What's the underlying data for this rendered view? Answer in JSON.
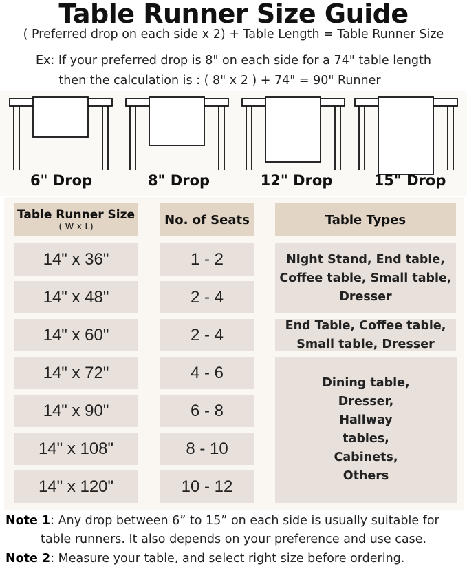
{
  "title": "Table Runner Size Guide",
  "formula": "( Preferred drop on each side x 2) + Table Length = Table Runner Size",
  "example_line1": "Ex: If your preferred drop is 8\" on each side for a 74\" table length",
  "example_line2": "then the calculation is : ( 8\" x 2 ) + 74\" = 90\" Runner",
  "drops": [
    {
      "label": "6\" Drop",
      "inches": 6
    },
    {
      "label": "8\" Drop",
      "inches": 8
    },
    {
      "label": "12\" Drop",
      "inches": 12
    },
    {
      "label": "15\" Drop",
      "inches": 15
    }
  ],
  "table": {
    "headers": {
      "size": "Table Runner Size",
      "size_sub": "( W x L)",
      "seats": "No. of Seats",
      "types": "Table Types"
    },
    "rows": [
      {
        "size": "14\" x 36\"",
        "seats": "1 - 2"
      },
      {
        "size": "14\" x 48\"",
        "seats": "2 - 4"
      },
      {
        "size": "14\" x 60\"",
        "seats": "2 - 4"
      },
      {
        "size": "14\" x 72\"",
        "seats": "4 - 6"
      },
      {
        "size": "14\" x 90\"",
        "seats": "6 - 8"
      },
      {
        "size": "14\" x 108\"",
        "seats": "8 - 10"
      },
      {
        "size": "14\" x 120\"",
        "seats": "10 - 12"
      }
    ],
    "types": [
      "Night Stand, End table, Coffee table, Small table, Dresser",
      "End Table, Coffee table, Small table, Dresser",
      "Dining table, Dresser, Hallway tables, Cabinets, Others"
    ]
  },
  "notes": [
    {
      "label": "Note 1",
      "text": ": Any drop between 6” to 15” on each side is usually suitable for",
      "text2": "table runners. It also depends on your preference and use case."
    },
    {
      "label": "Note 2",
      "text": ": Measure your table, and select right size before ordering."
    }
  ],
  "colors": {
    "header_cell": "#e3d5c5",
    "data_cell": "#e7e0db",
    "panel": "#faf6f2"
  }
}
